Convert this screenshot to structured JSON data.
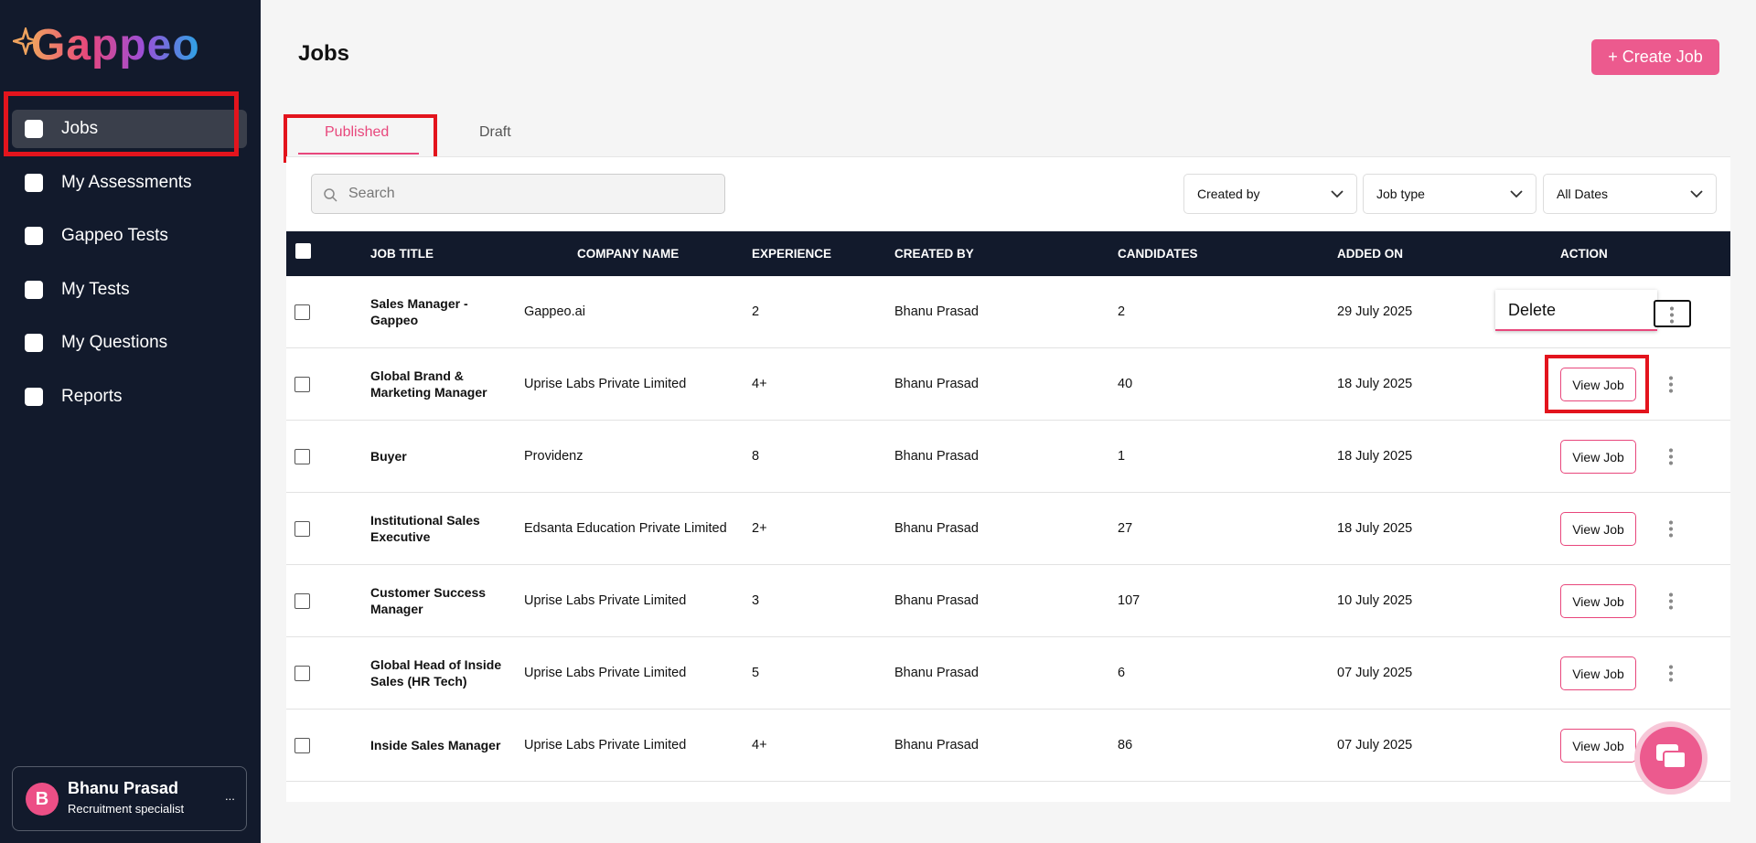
{
  "brand": "Gappeo",
  "nav": [
    "Jobs",
    "My Assessments",
    "Gappeo Tests",
    "My Tests",
    "My Questions",
    "Reports"
  ],
  "user": {
    "initial": "B",
    "name": "Bhanu Prasad",
    "role": "Recruitment specialist",
    "more": "..."
  },
  "header": {
    "title": "Jobs",
    "create_button": "+ Create Job"
  },
  "tabs": [
    "Published",
    "Draft"
  ],
  "search_placeholder": "Search",
  "filters": [
    "Created by",
    "Job type",
    "All Dates"
  ],
  "table": {
    "columns": [
      "JOB TITLE",
      "COMPANY NAME",
      "EXPERIENCE",
      "CREATED BY",
      "CANDIDATES",
      "ADDED ON",
      "ACTION"
    ],
    "rows": [
      [
        "Sales Manager - Gappeo",
        "Gappeo.ai",
        "2",
        "Bhanu Prasad",
        "2",
        "29 July 2025"
      ],
      [
        "Global Brand & Marketing Manager",
        "Uprise Labs Private Limited",
        "4+",
        "Bhanu Prasad",
        "40",
        "18 July 2025"
      ],
      [
        "Buyer",
        "Providenz",
        "8",
        "Bhanu Prasad",
        "1",
        "18 July 2025"
      ],
      [
        "Institutional Sales Executive",
        "Edsanta Education Private Limited",
        "2+",
        "Bhanu Prasad",
        "27",
        "18 July 2025"
      ],
      [
        "Customer Success Manager",
        "Uprise Labs Private Limited",
        "3",
        "Bhanu Prasad",
        "107",
        "10 July 2025"
      ],
      [
        "Global Head of Inside Sales (HR Tech)",
        "Uprise Labs Private Limited",
        "5",
        "Bhanu Prasad",
        "6",
        "07 July 2025"
      ],
      [
        "Inside Sales Manager",
        "Uprise Labs Private Limited",
        "4+",
        "Bhanu Prasad",
        "86",
        "07 July 2025"
      ]
    ],
    "view_button": "View Job",
    "menu_item": "Delete"
  }
}
